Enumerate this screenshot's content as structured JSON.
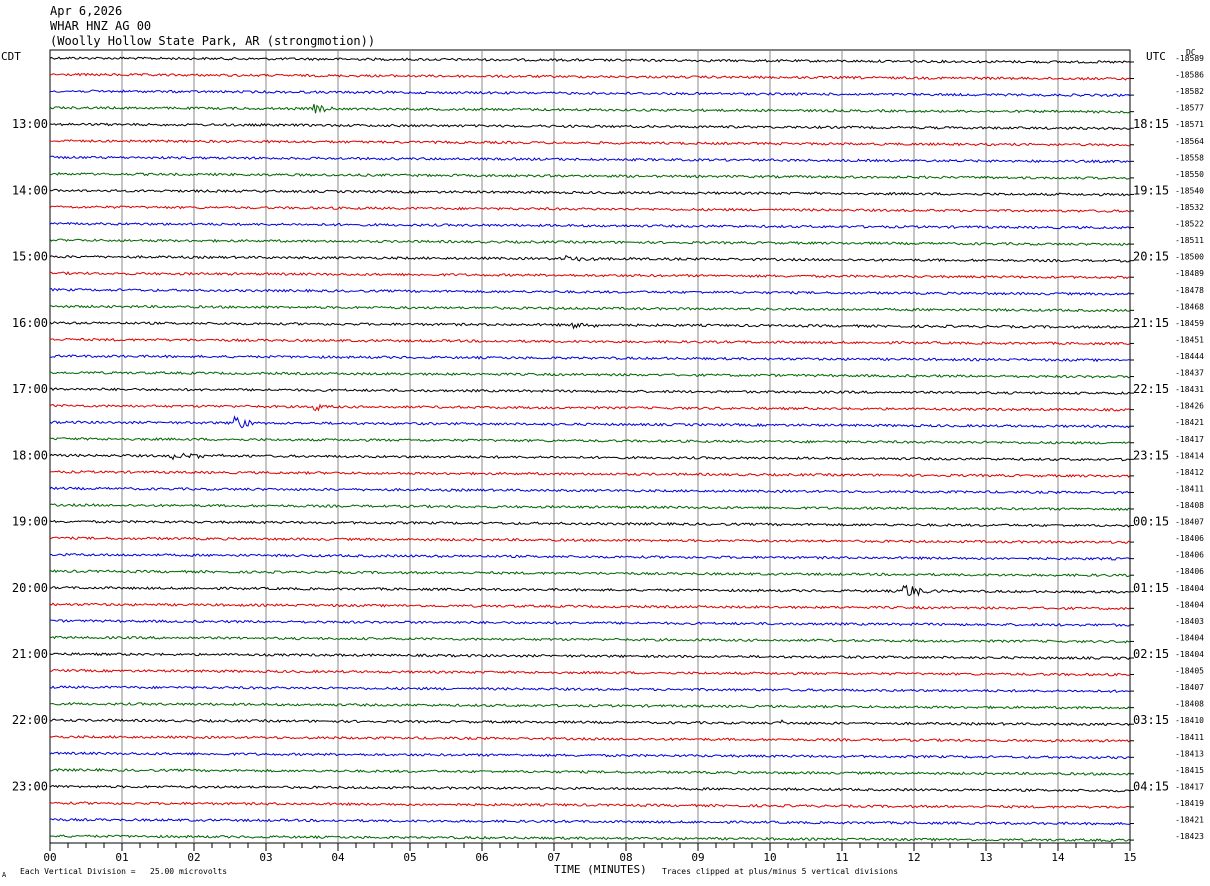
{
  "header": {
    "date": "Apr 6,2026",
    "station": "WHAR HNZ AG 00",
    "location": "(Woolly Hollow State Park, AR (strongmotion))"
  },
  "left_tz": "CDT",
  "right_tz": "UTC",
  "dc_label": "DC",
  "footer": {
    "scale": "Each Vertical Division =   25.00 microvolts",
    "xlabel": "TIME (MINUTES)",
    "clip_note": "Traces clipped at plus/minus 5 vertical divisions",
    "corner_mark": "A"
  },
  "colors": {
    "cycle": [
      "#000000",
      "#dd0000",
      "#0000dd",
      "#006600"
    ],
    "grid": "#888888"
  },
  "chart_data": {
    "type": "helicorder",
    "xlabel": "TIME (MINUTES)",
    "xlim": [
      0,
      15
    ],
    "x_ticks": [
      "00",
      "01",
      "02",
      "03",
      "04",
      "05",
      "06",
      "07",
      "08",
      "09",
      "10",
      "11",
      "12",
      "13",
      "14",
      "15"
    ],
    "left_hour_labels": [
      "13:00",
      "14:00",
      "15:00",
      "16:00",
      "17:00",
      "18:00",
      "19:00",
      "20:00",
      "21:00",
      "22:00",
      "23:00"
    ],
    "right_hour_labels": [
      "18:15",
      "19:15",
      "20:15",
      "21:15",
      "22:15",
      "23:15",
      "00:15",
      "01:15",
      "02:15",
      "03:15",
      "04:15"
    ],
    "dc_offsets": [
      "-18589",
      "-18586",
      "-18582",
      "-18577",
      "-18571",
      "-18564",
      "-18558",
      "-18550",
      "-18540",
      "-18532",
      "-18522",
      "-18511",
      "-18500",
      "-18489",
      "-18478",
      "-18468",
      "-18459",
      "-18451",
      "-18444",
      "-18437",
      "-18431",
      "-18426",
      "-18421",
      "-18417",
      "-18414",
      "-18412",
      "-18411",
      "-18408",
      "-18407",
      "-18406",
      "-18406",
      "-18406",
      "-18404",
      "-18404",
      "-18403",
      "-18404",
      "-18404",
      "-18405",
      "-18407",
      "-18408",
      "-18410",
      "-18411",
      "-18413",
      "-18415",
      "-18417",
      "-18419",
      "-18421",
      "-18423"
    ],
    "events": [
      {
        "trace": 3,
        "minute": 3.7,
        "amp": 6,
        "dur": 0.3
      },
      {
        "trace": 12,
        "minute": 7.2,
        "amp": 3,
        "dur": 1.4
      },
      {
        "trace": 16,
        "minute": 7.3,
        "amp": 4,
        "dur": 0.6
      },
      {
        "trace": 21,
        "minute": 3.7,
        "amp": 5,
        "dur": 0.3
      },
      {
        "trace": 22,
        "minute": 2.6,
        "amp": 9,
        "dur": 0.4
      },
      {
        "trace": 24,
        "minute": 1.7,
        "amp": 3,
        "dur": 1.2
      },
      {
        "trace": 32,
        "minute": 11.9,
        "amp": 8,
        "dur": 0.5
      },
      {
        "trace": 40,
        "minute": 10.15,
        "amp": 6,
        "dur": 0.05
      }
    ]
  }
}
